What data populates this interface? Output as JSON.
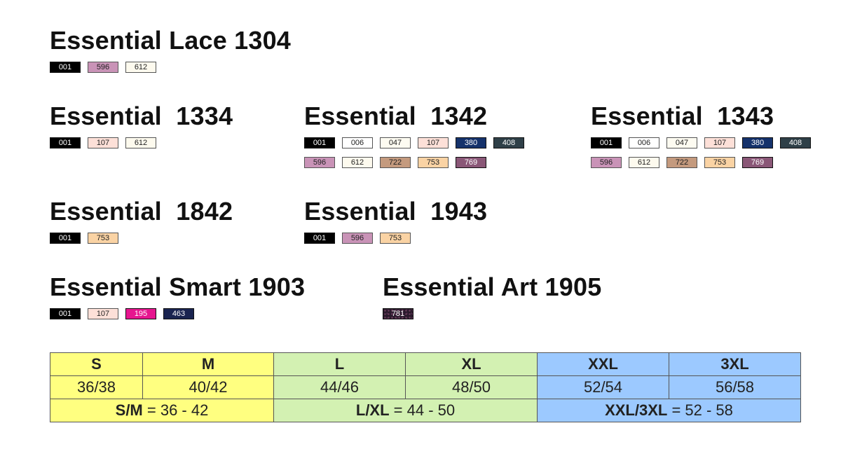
{
  "products": [
    {
      "id": "lace-1304",
      "name": "Essential Lace 1304",
      "swatches": [
        {
          "code": "001",
          "color": "#000000",
          "dark": true
        },
        {
          "code": "596",
          "color": "#c993b7",
          "dark": false
        },
        {
          "code": "612",
          "color": "#fdfaee",
          "dark": false
        }
      ]
    },
    {
      "id": "1334",
      "name": "Essential  1334",
      "swatches": [
        {
          "code": "001",
          "color": "#000000",
          "dark": true
        },
        {
          "code": "107",
          "color": "#fde0d8",
          "dark": false
        },
        {
          "code": "612",
          "color": "#fdfaee",
          "dark": false
        }
      ]
    },
    {
      "id": "1342",
      "name": "Essential  1342",
      "swatches": [
        {
          "code": "001",
          "color": "#000000",
          "dark": true
        },
        {
          "code": "006",
          "color": "#ffffff",
          "dark": false
        },
        {
          "code": "047",
          "color": "#fdfbf1",
          "dark": false
        },
        {
          "code": "107",
          "color": "#fde0d8",
          "dark": false
        },
        {
          "code": "380",
          "color": "#15326b",
          "dark": true
        },
        {
          "code": "408",
          "color": "#2f4048",
          "dark": true
        },
        {
          "code": "596",
          "color": "#c993b7",
          "dark": false
        },
        {
          "code": "612",
          "color": "#fdfaee",
          "dark": false
        },
        {
          "code": "722",
          "color": "#c49a7e",
          "dark": false
        },
        {
          "code": "753",
          "color": "#fad3a4",
          "dark": false
        },
        {
          "code": "769",
          "color": "#8a5777",
          "dark": true
        }
      ]
    },
    {
      "id": "1343",
      "name": "Essential  1343",
      "swatches": [
        {
          "code": "001",
          "color": "#000000",
          "dark": true
        },
        {
          "code": "006",
          "color": "#ffffff",
          "dark": false
        },
        {
          "code": "047",
          "color": "#fdfbf1",
          "dark": false
        },
        {
          "code": "107",
          "color": "#fde0d8",
          "dark": false
        },
        {
          "code": "380",
          "color": "#15326b",
          "dark": true
        },
        {
          "code": "408",
          "color": "#2f4048",
          "dark": true
        },
        {
          "code": "596",
          "color": "#c993b7",
          "dark": false
        },
        {
          "code": "612",
          "color": "#fdfaee",
          "dark": false
        },
        {
          "code": "722",
          "color": "#c49a7e",
          "dark": false
        },
        {
          "code": "753",
          "color": "#fad3a4",
          "dark": false
        },
        {
          "code": "769",
          "color": "#8a5777",
          "dark": true
        }
      ]
    },
    {
      "id": "1842",
      "name": "Essential  1842",
      "swatches": [
        {
          "code": "001",
          "color": "#000000",
          "dark": true
        },
        {
          "code": "753",
          "color": "#fad3a4",
          "dark": false
        }
      ]
    },
    {
      "id": "1943",
      "name": "Essential  1943",
      "swatches": [
        {
          "code": "001",
          "color": "#000000",
          "dark": true
        },
        {
          "code": "596",
          "color": "#c993b7",
          "dark": false
        },
        {
          "code": "753",
          "color": "#fad3a4",
          "dark": false
        }
      ]
    },
    {
      "id": "smart-1903",
      "name": "Essential Smart 1903",
      "swatches": [
        {
          "code": "001",
          "color": "#000000",
          "dark": true
        },
        {
          "code": "107",
          "color": "#fde0d8",
          "dark": false
        },
        {
          "code": "195",
          "color": "#e6168f",
          "dark": true
        },
        {
          "code": "463",
          "color": "#1a2450",
          "dark": true
        }
      ]
    },
    {
      "id": "art-1905",
      "name": "Essential Art 1905",
      "swatches": [
        {
          "code": "781",
          "color": "#2a1a2c",
          "dark": true,
          "pattern": true
        }
      ]
    }
  ],
  "size_table": {
    "sizes": [
      "S",
      "M",
      "L",
      "XL",
      "XXL",
      "3XL"
    ],
    "ranges": [
      "36/38",
      "40/42",
      "44/46",
      "48/50",
      "52/54",
      "56/58"
    ],
    "combos": [
      {
        "label": "S/M",
        "range": "= 36 - 42"
      },
      {
        "label": "L/XL",
        "range": "= 44 - 50"
      },
      {
        "label": "XXL/3XL",
        "range": "= 52 - 58"
      }
    ]
  }
}
